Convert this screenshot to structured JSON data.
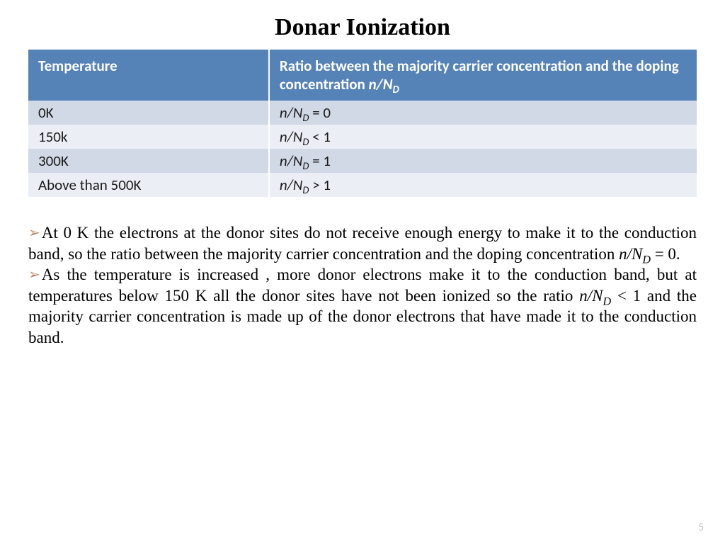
{
  "title": "Donar Ionization",
  "table": {
    "type": "table",
    "header_bg": "#5582b7",
    "header_fg": "#ffffff",
    "row_alt_colors": [
      "#d1d8e6",
      "#ebeef5"
    ],
    "font_family": "Calibri",
    "fontsize": 21,
    "columns": [
      {
        "label": "Temperature",
        "width_pct": 36
      },
      {
        "label_html": "Ratio between the majority carrier concentration and the doping concentration <span class=\"italic\">n/N<sub>D</sub></span>",
        "width_pct": 64
      }
    ],
    "rows": [
      {
        "temperature": "0K",
        "ratio_html": "<span class=\"italic\">n/N<sub>D</sub></span> = 0"
      },
      {
        "temperature": "150k",
        "ratio_html": "<span class=\"italic\">n/N<sub>D</sub></span> < 1"
      },
      {
        "temperature": "300K",
        "ratio_html": "<span class=\"italic\">n/N<sub>D</sub></span> = 1"
      },
      {
        "temperature": "Above than 500K",
        "ratio_html": "<span class=\"italic\">n/N<sub>D</sub></span> > 1"
      }
    ]
  },
  "bullets": {
    "fontsize": 23,
    "arrow_color": "#b5896b",
    "text_color": "#000000",
    "items": [
      "At 0 K the electrons at the donor sites do not receive enough energy to make it to the conduction band, so the ratio between the majority carrier concentration and the doping concentration <span class=\"italic\">n/N<sub>D</sub></span> = 0.",
      "As the temperature is increased , more donor electrons make it to the conduction band, but at temperatures below 150 K all the donor sites have not been ionized so the ratio <span class=\"italic\">n/N<sub>D</sub></span> < 1 and the majority carrier concentration is made up of the donor electrons that have made it to the conduction band."
    ]
  },
  "page_number": "5",
  "colors": {
    "background": "#ffffff",
    "title": "#000000",
    "pageno": "#bfbfbf"
  }
}
